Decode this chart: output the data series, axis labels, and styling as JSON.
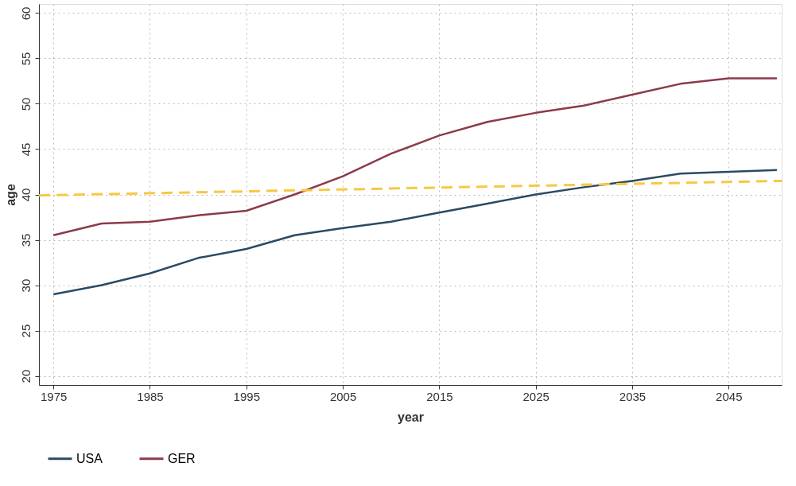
{
  "chart_data": {
    "type": "line",
    "xlabel": "year",
    "ylabel": "age",
    "xlim": [
      1973.5,
      2050.5
    ],
    "xticks": [
      1975,
      1985,
      1995,
      2005,
      2015,
      2025,
      2035,
      2045
    ],
    "ylim": [
      19,
      61
    ],
    "yticks": [
      20,
      25,
      30,
      35,
      40,
      45,
      50,
      55,
      60
    ],
    "grid": true,
    "legend": "bottom",
    "line_style": "solid",
    "series": [
      {
        "name": "USA",
        "color": "#2b4a63",
        "x": [
          1975,
          1980,
          1985,
          1990,
          1995,
          2000,
          2005,
          2010,
          2015,
          2020,
          2025,
          2030,
          2035,
          2040,
          2045,
          2050
        ],
        "values": [
          29,
          30,
          31.3,
          33,
          34,
          35.5,
          36.3,
          37,
          38,
          39,
          40,
          40.8,
          41.5,
          42.3,
          42.5,
          42.7
        ]
      },
      {
        "name": "GER",
        "color": "#8c3a4a",
        "x": [
          1975,
          1980,
          1985,
          1990,
          1995,
          2000,
          2005,
          2010,
          2015,
          2020,
          2025,
          2030,
          2035,
          2040,
          2045,
          2050
        ],
        "values": [
          35.5,
          36.8,
          37,
          37.7,
          38.2,
          40,
          42,
          44.5,
          46.5,
          48,
          49,
          49.8,
          51,
          52.2,
          52.8,
          52.8
        ]
      },
      {
        "type": "line",
        "line_style": "dashed",
        "color": "#f7c843",
        "x": [
          1973.5,
          2050.5
        ],
        "values": [
          39.9,
          41.5
        ]
      }
    ]
  }
}
